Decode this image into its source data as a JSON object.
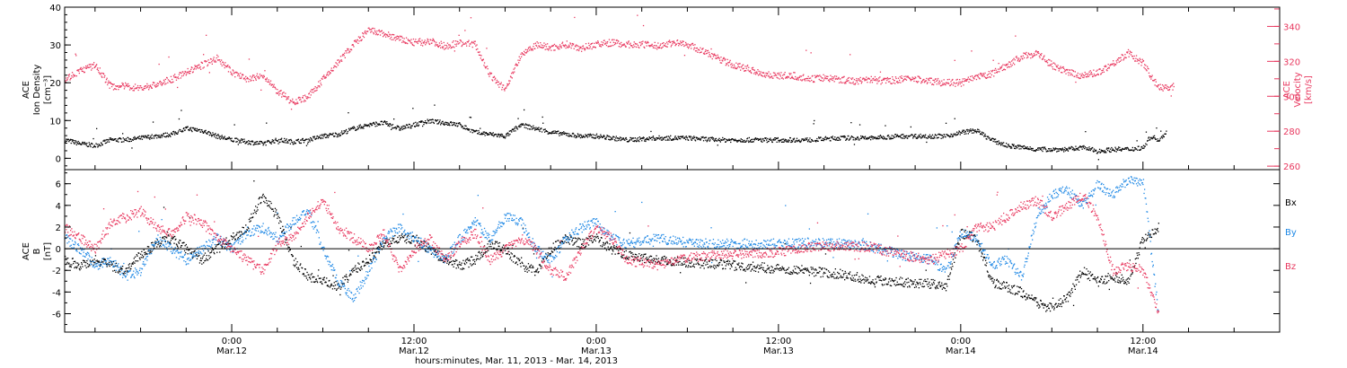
{
  "colors": {
    "black": "#000000",
    "pink": "#e8385f",
    "blue": "#1e88e5",
    "white": "#ffffff"
  },
  "xlabel": "hours:minutes, Mar. 11, 2013 - Mar. 14, 2013",
  "x_ticks": [
    {
      "t": 24,
      "time": "0:00",
      "date": "Mar.12"
    },
    {
      "t": 36,
      "time": "12:00",
      "date": "Mar.12"
    },
    {
      "t": 48,
      "time": "0:00",
      "date": "Mar.13"
    },
    {
      "t": 60,
      "time": "12:00",
      "date": "Mar.13"
    },
    {
      "t": 72,
      "time": "0:00",
      "date": "Mar.14"
    },
    {
      "t": 84,
      "time": "12:00",
      "date": "Mar.14"
    }
  ],
  "chart_data": [
    {
      "type": "scatter",
      "xlim": [
        13,
        93
      ],
      "ylabel_left": [
        "ACE",
        "Ion Density",
        "[cm⁻³]"
      ],
      "ylabel_right": [
        "ACE",
        "Velocity",
        "[km/s]"
      ],
      "ylim_left": [
        -3,
        40
      ],
      "ylim_right": [
        258,
        351
      ],
      "yticks_left": [
        0,
        10,
        20,
        30,
        40
      ],
      "yticks_right": [
        260,
        280,
        300,
        320,
        340
      ],
      "series": [
        {
          "key": "density",
          "axis": "left",
          "color": "#000000",
          "x": [
            13,
            14,
            15,
            16,
            17,
            18,
            19,
            20,
            21,
            22,
            23,
            24,
            25,
            26,
            27,
            28,
            29,
            30,
            31,
            32,
            33,
            34,
            35,
            36,
            37,
            38,
            39,
            40,
            41,
            42,
            43,
            44,
            45,
            46,
            47,
            48,
            49,
            50,
            52,
            54,
            56,
            58,
            60,
            62,
            64,
            66,
            68,
            70,
            71,
            72,
            73,
            74,
            75,
            76,
            77,
            78,
            79,
            80,
            81,
            82,
            83,
            84,
            84.5,
            85,
            85.5
          ],
          "y": [
            5,
            4,
            3.5,
            5,
            5,
            5.5,
            6,
            6.5,
            8,
            7.5,
            6,
            5,
            4.5,
            4,
            5,
            4.5,
            5,
            6,
            6.5,
            8,
            9,
            9.5,
            8,
            9,
            10,
            9.5,
            9,
            7,
            6.5,
            6,
            9,
            8,
            7,
            6.5,
            6,
            6,
            5.5,
            5,
            5.5,
            5.5,
            5,
            5,
            5,
            5,
            5.5,
            5.5,
            6,
            6,
            6,
            7,
            7.5,
            5,
            3.5,
            3,
            2.5,
            2.5,
            2.5,
            3,
            2,
            2.5,
            2.5,
            3,
            6,
            5,
            7
          ]
        },
        {
          "key": "velocity",
          "axis": "right",
          "color": "#e8385f",
          "x": [
            13,
            14,
            15,
            16,
            17,
            18,
            19,
            20,
            21,
            22,
            23,
            24,
            25,
            26,
            27,
            28,
            29,
            30,
            31,
            32,
            33,
            34,
            35,
            36,
            37,
            38,
            39,
            40,
            41,
            42,
            43,
            44,
            45,
            46,
            47,
            48,
            49,
            50,
            51,
            52,
            53,
            54,
            55,
            56,
            57,
            58,
            59,
            60,
            61,
            62,
            63,
            64,
            65,
            66,
            67,
            68,
            69,
            70,
            71,
            72,
            73,
            74,
            75,
            76,
            77,
            78,
            79,
            80,
            81,
            82,
            83,
            84,
            85,
            86
          ],
          "y": [
            310,
            315,
            318,
            306,
            306,
            305,
            307,
            310,
            314,
            318,
            322,
            314,
            310,
            312,
            303,
            297,
            300,
            310,
            320,
            330,
            338,
            336,
            333,
            331,
            332,
            329,
            331,
            330,
            312,
            304,
            324,
            330,
            328,
            330,
            328,
            330,
            331,
            330,
            330,
            329,
            331,
            330,
            326,
            322,
            318,
            316,
            313,
            312,
            312,
            310,
            311,
            310,
            309,
            310,
            309,
            310,
            310,
            309,
            308,
            308,
            311,
            313,
            318,
            323,
            325,
            318,
            314,
            312,
            314,
            319,
            325,
            319,
            305,
            306
          ]
        }
      ]
    },
    {
      "type": "scatter",
      "xlim": [
        13,
        93
      ],
      "ylabel_left": [
        "ACE",
        "B",
        "[nT]"
      ],
      "ylim": [
        -7.7,
        7.3
      ],
      "yticks": [
        -6,
        -4,
        -2,
        0,
        2,
        4,
        6
      ],
      "zero_line": true,
      "legend": {
        "placement": "right",
        "entries": [
          "Bx",
          "By",
          "Bz"
        ]
      },
      "series": [
        {
          "name": "Bx",
          "color": "#000000",
          "x": [
            13,
            14,
            15,
            16,
            17,
            18,
            19,
            20,
            21,
            22,
            23,
            24,
            25,
            26,
            27,
            28,
            29,
            30,
            31,
            32,
            33,
            34,
            35,
            36,
            37,
            38,
            39,
            40,
            41,
            42,
            43,
            44,
            45,
            46,
            47,
            48,
            49,
            50,
            52,
            54,
            56,
            58,
            60,
            62,
            64,
            66,
            68,
            70,
            71,
            72,
            73,
            74,
            75,
            76,
            77,
            78,
            79,
            80,
            81,
            82,
            83,
            84,
            85
          ],
          "y": [
            -1,
            -1.5,
            -1,
            -1.5,
            -2,
            -0.5,
            0.5,
            1,
            0,
            -1,
            0,
            1,
            2,
            5,
            3,
            -1,
            -2.5,
            -3,
            -3.5,
            -2,
            -1,
            0.5,
            1,
            1,
            0,
            -1,
            -1.5,
            -1,
            0.5,
            0,
            -1.5,
            -2,
            0,
            1,
            0.5,
            1,
            0,
            -0.5,
            -1,
            -1.2,
            -1.4,
            -1.6,
            -1.8,
            -2,
            -2.3,
            -2.8,
            -3,
            -3.2,
            -3.5,
            1.5,
            1,
            -3,
            -3.5,
            -4,
            -5,
            -5.5,
            -4.5,
            -2,
            -3,
            -2.5,
            -3,
            1,
            2
          ]
        },
        {
          "name": "By",
          "color": "#1e88e5",
          "x": [
            13,
            14,
            15,
            16,
            17,
            18,
            19,
            20,
            21,
            22,
            23,
            24,
            25,
            26,
            27,
            28,
            29,
            30,
            31,
            32,
            33,
            34,
            35,
            36,
            37,
            38,
            39,
            40,
            41,
            42,
            43,
            44,
            45,
            46,
            47,
            48,
            49,
            50,
            52,
            54,
            56,
            58,
            60,
            62,
            64,
            66,
            68,
            70,
            71,
            72,
            73,
            74,
            75,
            76,
            77,
            78,
            79,
            80,
            81,
            82,
            83,
            84,
            85
          ],
          "y": [
            1,
            0,
            -1.5,
            -1,
            -2.5,
            -2,
            1,
            0,
            -1,
            0,
            1,
            0,
            1.5,
            2,
            1,
            2.5,
            3.5,
            0,
            -3,
            -4.5,
            -2,
            1,
            2,
            1,
            0,
            -1,
            1,
            2.5,
            1,
            3,
            2.5,
            0,
            -1,
            1,
            2,
            2.5,
            1,
            0.5,
            1,
            0.6,
            0.5,
            0.5,
            0.5,
            0.6,
            0.6,
            0.3,
            -0.5,
            -1,
            -2,
            1.5,
            1,
            -1.5,
            -1,
            -2.5,
            3,
            5,
            5.5,
            4,
            6,
            5,
            6.5,
            6,
            -6
          ]
        },
        {
          "name": "Bz",
          "color": "#e8385f",
          "x": [
            13,
            14,
            15,
            16,
            17,
            18,
            19,
            20,
            21,
            22,
            23,
            24,
            25,
            26,
            27,
            28,
            29,
            30,
            31,
            32,
            33,
            34,
            35,
            36,
            37,
            38,
            39,
            40,
            41,
            42,
            43,
            44,
            45,
            46,
            47,
            48,
            49,
            50,
            52,
            54,
            56,
            58,
            60,
            62,
            64,
            66,
            68,
            70,
            71,
            72,
            73,
            74,
            75,
            76,
            77,
            78,
            79,
            80,
            81,
            82,
            83,
            84,
            85
          ],
          "y": [
            2,
            1,
            0,
            2.5,
            3,
            3.5,
            2,
            1.5,
            3,
            2.5,
            1,
            0,
            -1,
            -2,
            0.5,
            1,
            3,
            4.5,
            2,
            1,
            0,
            1.5,
            -2,
            0,
            1,
            -1,
            0.5,
            1.5,
            -1,
            0,
            1,
            0,
            -2,
            -2.5,
            0,
            2,
            1,
            -1,
            -1.5,
            -0.8,
            -0.5,
            -0.4,
            -0.3,
            0.2,
            0.3,
            0.2,
            -0.5,
            -1,
            -0.5,
            0,
            2,
            2,
            3,
            4,
            4.5,
            3,
            4,
            5,
            3,
            -2,
            -1.5,
            -2,
            -6
          ]
        }
      ]
    }
  ]
}
